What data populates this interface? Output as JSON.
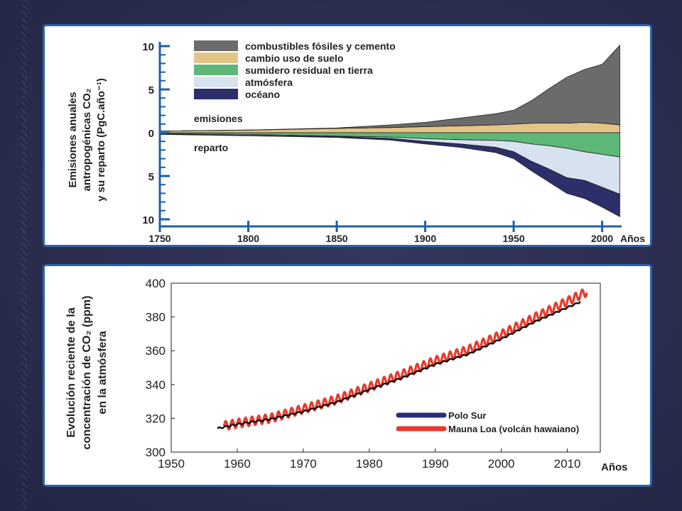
{
  "colors": {
    "fossil": "#6b6b6b",
    "landuse": "#e2c487",
    "landsink": "#5db878",
    "atmosphere": "#d7e2f1",
    "ocean": "#2d2f6b",
    "axis_blue": "#1f5fa8",
    "south_pole": "#2b2d7a",
    "mauna_loa": "#e8392b"
  },
  "chart_data": [
    {
      "type": "area",
      "ylabel_lines": [
        "Emisiones anuales",
        "antropogénicas CO₂",
        "y su reparto (PgC.año⁻¹)"
      ],
      "xlabel": "Años",
      "xlim": [
        1750,
        2011
      ],
      "ylim": [
        -10,
        10
      ],
      "x_ticks": [
        "1750",
        "1800",
        "1850",
        "1900",
        "1950",
        "2000"
      ],
      "y_ticks": [
        "10",
        "5",
        "0",
        "5",
        "10"
      ],
      "annotations": [
        "emisiones",
        "reparto"
      ],
      "legend_position": "top-center",
      "x": [
        1750,
        1800,
        1850,
        1880,
        1900,
        1920,
        1940,
        1950,
        1960,
        1970,
        1980,
        1990,
        2000,
        2010
      ],
      "series": [
        {
          "name": "combustibles fósiles y cemento",
          "values": [
            0.0,
            0.02,
            0.05,
            0.3,
            0.5,
            0.9,
            1.3,
            1.6,
            2.6,
            4.0,
            5.3,
            6.1,
            6.8,
            9.2
          ]
        },
        {
          "name": "cambio uso de suelo",
          "values": [
            0.2,
            0.3,
            0.5,
            0.6,
            0.7,
            0.8,
            0.9,
            1.0,
            1.1,
            1.1,
            1.1,
            1.2,
            1.1,
            0.9
          ]
        },
        {
          "name": "sumidero residual en tierra",
          "values": [
            0.1,
            0.2,
            0.4,
            0.5,
            0.7,
            0.8,
            0.9,
            1.0,
            1.3,
            1.5,
            1.8,
            2.2,
            2.5,
            2.8
          ]
        },
        {
          "name": "atmósfera",
          "values": [
            0.05,
            0.1,
            0.05,
            0.15,
            0.3,
            0.5,
            0.8,
            1.2,
            2.0,
            2.7,
            3.4,
            3.3,
            3.8,
            4.3
          ]
        },
        {
          "name": "océano",
          "values": [
            0.05,
            0.05,
            0.1,
            0.2,
            0.3,
            0.4,
            0.6,
            0.8,
            1.1,
            1.5,
            1.8,
            2.1,
            2.3,
            2.6
          ]
        }
      ]
    },
    {
      "type": "line",
      "ylabel_lines": [
        "Evolución reciente de la",
        "concentración de CO₂ (ppm)",
        "en la atmósfera"
      ],
      "xlabel": "Años",
      "xlim": [
        1950,
        2015
      ],
      "ylim": [
        300,
        400
      ],
      "x_ticks": [
        "1950",
        "1960",
        "1970",
        "1980",
        "1990",
        "2000",
        "2010"
      ],
      "y_ticks": [
        "300",
        "320",
        "340",
        "360",
        "380",
        "400"
      ],
      "legend_position": "lower-right",
      "series": [
        {
          "name": "Polo Sur",
          "x": [
            1957,
            1960,
            1965,
            1970,
            1975,
            1980,
            1985,
            1990,
            1995,
            2000,
            2005,
            2012
          ],
          "values": [
            314,
            316.5,
            319.5,
            324,
            329.5,
            337,
            344,
            352,
            358,
            367,
            377,
            389
          ]
        },
        {
          "name": "Mauna Loa (volcán hawaiano)",
          "x": [
            1958,
            1960,
            1965,
            1970,
            1975,
            1980,
            1985,
            1990,
            1995,
            2000,
            2005,
            2013
          ],
          "values": [
            315.5,
            317,
            320,
            325.5,
            331,
            338.5,
            346,
            354,
            360.5,
            369.5,
            379.5,
            395
          ]
        }
      ]
    }
  ]
}
